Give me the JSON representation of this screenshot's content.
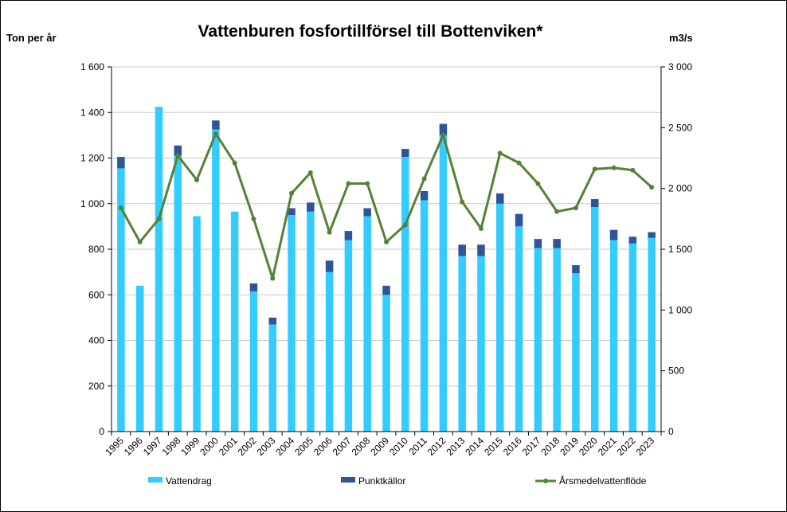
{
  "chart_data": {
    "type": "bar",
    "title": "Vattenburen fosfortillförsel till Bottenviken*",
    "ylabel": "Ton per år",
    "y2label": "m3/s",
    "ylim": [
      0,
      1600
    ],
    "y2lim": [
      0,
      3000
    ],
    "yticks": [
      0,
      200,
      400,
      600,
      800,
      1000,
      1200,
      1400,
      1600
    ],
    "yticklabels": [
      "0",
      "200",
      "400",
      "600",
      "800",
      "1 000",
      "1 200",
      "1 400",
      "1 600"
    ],
    "y2ticks": [
      0,
      500,
      1000,
      1500,
      2000,
      2500,
      3000
    ],
    "y2ticklabels": [
      "0",
      "500",
      "1 000",
      "1 500",
      "2 000",
      "2 500",
      "3 000"
    ],
    "categories": [
      "1995",
      "1996",
      "1997",
      "1998",
      "1999",
      "2000",
      "2001",
      "2002",
      "2003",
      "2004",
      "2005",
      "2006",
      "2007",
      "2008",
      "2009",
      "2010",
      "2011",
      "2012",
      "2013",
      "2014",
      "2015",
      "2016",
      "2017",
      "2018",
      "2019",
      "2020",
      "2021",
      "2022",
      "2023"
    ],
    "series": [
      {
        "name": "Vattendrag",
        "kind": "bar",
        "stack": "total",
        "axis": "left",
        "color": "#33ccff",
        "values": [
          1155,
          640,
          1425,
          1210,
          945,
          1325,
          965,
          615,
          470,
          950,
          965,
          700,
          840,
          945,
          600,
          1205,
          1015,
          1300,
          770,
          770,
          1000,
          900,
          805,
          805,
          695,
          985,
          840,
          825,
          850
        ]
      },
      {
        "name": "Punktkällor",
        "kind": "bar",
        "stack": "total",
        "axis": "left",
        "color": "#2f5597",
        "values": [
          50,
          0,
          0,
          45,
          0,
          40,
          0,
          35,
          30,
          30,
          40,
          50,
          40,
          35,
          40,
          35,
          40,
          50,
          50,
          50,
          45,
          55,
          40,
          40,
          35,
          35,
          45,
          30,
          25
        ]
      },
      {
        "name": "Årsmedelvattenflöde",
        "kind": "line",
        "axis": "right",
        "color": "#548235",
        "values": [
          1840,
          1560,
          1750,
          2270,
          2070,
          2450,
          2210,
          1750,
          1260,
          1960,
          2130,
          1640,
          2040,
          2040,
          1560,
          1700,
          2080,
          2440,
          1890,
          1670,
          2290,
          2210,
          2040,
          1810,
          1840,
          2160,
          2170,
          2150,
          2010
        ]
      }
    ],
    "grid": true,
    "legend": "bottom"
  }
}
